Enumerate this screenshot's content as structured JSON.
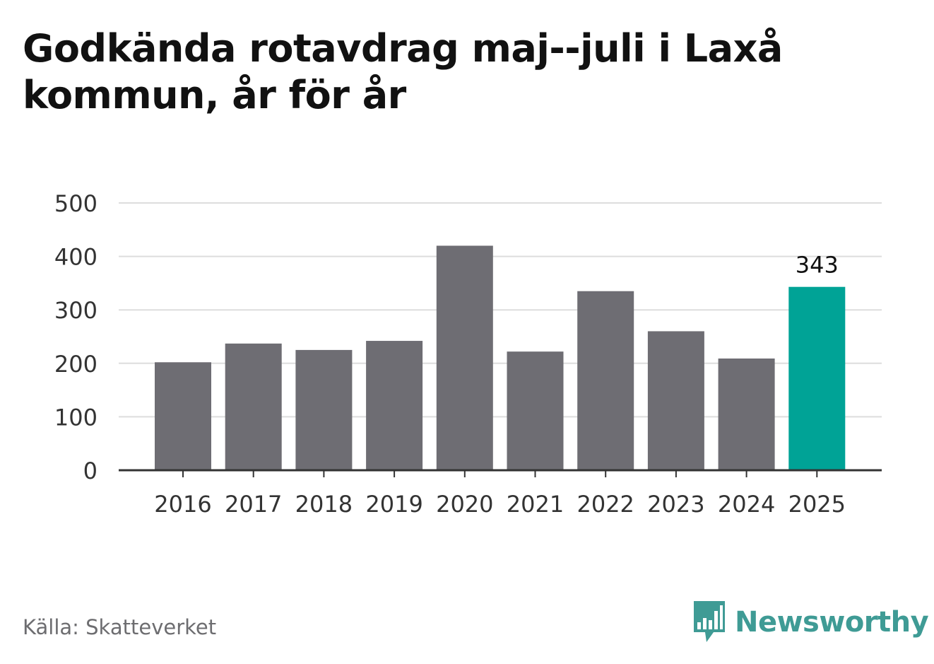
{
  "title": "Godkända rotavdrag maj--juli i Laxå kommun, år för år",
  "source": "Källa: Skatteverket",
  "brand": {
    "name": "Newsworthy",
    "icon": "newsworthy-logo-icon",
    "color": "#3f9b95"
  },
  "chart_data": {
    "type": "bar",
    "categories": [
      "2016",
      "2017",
      "2018",
      "2019",
      "2020",
      "2021",
      "2022",
      "2023",
      "2024",
      "2025"
    ],
    "values": [
      202,
      237,
      225,
      242,
      420,
      222,
      335,
      260,
      209,
      343
    ],
    "ylim": [
      0,
      500
    ],
    "yticks": [
      0,
      100,
      200,
      300,
      400,
      500
    ],
    "highlight_index": 9,
    "highlight_label": "343",
    "bar_color": "#6e6d73",
    "highlight_color": "#00a396",
    "grid": true
  }
}
